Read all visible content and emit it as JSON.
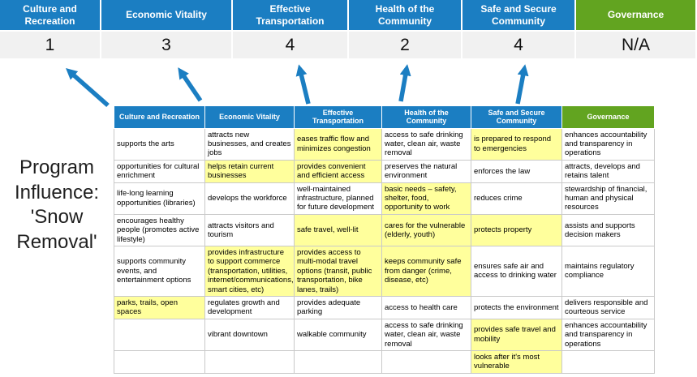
{
  "title": "Program Influence: 'Snow Removal'",
  "summary": {
    "columns": [
      {
        "label": "Culture and Recreation",
        "score": "1",
        "theme": "blue"
      },
      {
        "label": "Economic Vitality",
        "score": "3",
        "theme": "blue"
      },
      {
        "label": "Effective Transportation",
        "score": "4",
        "theme": "blue"
      },
      {
        "label": "Health of the Community",
        "score": "2",
        "theme": "blue"
      },
      {
        "label": "Safe and Secure Community",
        "score": "4",
        "theme": "blue"
      },
      {
        "label": "Governance",
        "score": "N/A",
        "theme": "green"
      }
    ]
  },
  "table": {
    "headers": [
      {
        "label": "Culture and Recreation",
        "theme": "blue"
      },
      {
        "label": "Economic Vitality",
        "theme": "blue"
      },
      {
        "label": "Effective Transportation",
        "theme": "blue"
      },
      {
        "label": "Health of the Community",
        "theme": "blue"
      },
      {
        "label": "Safe and Secure Community",
        "theme": "blue"
      },
      {
        "label": "Governance",
        "theme": "green"
      }
    ],
    "rows": [
      [
        {
          "text": "supports the arts",
          "highlight": false
        },
        {
          "text": "attracts new businesses, and creates jobs",
          "highlight": false
        },
        {
          "text": "eases traffic flow and minimizes congestion",
          "highlight": true
        },
        {
          "text": "access to safe drinking water, clean air, waste removal",
          "highlight": false
        },
        {
          "text": "is prepared to respond to emergencies",
          "highlight": true
        },
        {
          "text": "enhances accountability and transparency in operations",
          "highlight": false
        }
      ],
      [
        {
          "text": "opportunities for cultural enrichment",
          "highlight": false
        },
        {
          "text": "helps retain current businesses",
          "highlight": true
        },
        {
          "text": "provides convenient and efficient access",
          "highlight": true
        },
        {
          "text": "preserves the natural environment",
          "highlight": false
        },
        {
          "text": "enforces the law",
          "highlight": false
        },
        {
          "text": "attracts, develops and retains talent",
          "highlight": false
        }
      ],
      [
        {
          "text": "life-long learning opportunities (libraries)",
          "highlight": false
        },
        {
          "text": "develops the workforce",
          "highlight": false
        },
        {
          "text": "well-maintained infrastructure, planned for future development",
          "highlight": false
        },
        {
          "text": "basic needs – safety, shelter, food, opportunity to work",
          "highlight": true
        },
        {
          "text": "reduces crime",
          "highlight": false
        },
        {
          "text": "stewardship of financial, human and physical resources",
          "highlight": false
        }
      ],
      [
        {
          "text": "encourages healthy people (promotes active lifestyle)",
          "highlight": false
        },
        {
          "text": "attracts visitors and tourism",
          "highlight": false
        },
        {
          "text": "safe travel, well-lit",
          "highlight": true
        },
        {
          "text": "cares for the vulnerable (elderly, youth)",
          "highlight": true
        },
        {
          "text": "protects property",
          "highlight": true
        },
        {
          "text": "assists and supports decision makers",
          "highlight": false
        }
      ],
      [
        {
          "text": "supports community events, and entertainment options",
          "highlight": false
        },
        {
          "text": "provides infrastructure to support commerce (transportation, utilities, internet/communications, smart cities, etc)",
          "highlight": true
        },
        {
          "text": "provides access to multi-modal travel options (transit, public transportation, bike lanes, trails)",
          "highlight": true
        },
        {
          "text": "keeps community safe from danger (crime, disease, etc)",
          "highlight": true
        },
        {
          "text": "ensures safe air and access to drinking water",
          "highlight": false
        },
        {
          "text": "maintains regulatory compliance",
          "highlight": false
        }
      ],
      [
        {
          "text": "parks, trails, open spaces",
          "highlight": true
        },
        {
          "text": "regulates growth and development",
          "highlight": false
        },
        {
          "text": "provides adequate parking",
          "highlight": false
        },
        {
          "text": "access to health care",
          "highlight": false
        },
        {
          "text": "protects the environment",
          "highlight": false
        },
        {
          "text": "delivers responsible and courteous service",
          "highlight": false
        }
      ],
      [
        {
          "text": "",
          "highlight": false
        },
        {
          "text": "vibrant downtown",
          "highlight": false
        },
        {
          "text": "walkable community",
          "highlight": false
        },
        {
          "text": "access to safe drinking water, clean air, waste removal",
          "highlight": false
        },
        {
          "text": "provides safe travel and mobility",
          "highlight": true
        },
        {
          "text": "enhances accountability and transparency in operations",
          "highlight": false
        }
      ],
      [
        {
          "text": "",
          "highlight": false
        },
        {
          "text": "",
          "highlight": false
        },
        {
          "text": "",
          "highlight": false
        },
        {
          "text": "",
          "highlight": false
        },
        {
          "text": "looks after it's most vulnerable",
          "highlight": true
        },
        {
          "text": "",
          "highlight": false
        }
      ]
    ]
  },
  "colors": {
    "blue": "#1B7EC2",
    "green": "#62A420",
    "yellow": "#FFFF9C",
    "score_band": "#F1F1F1",
    "grid": "#C9C9C9"
  }
}
